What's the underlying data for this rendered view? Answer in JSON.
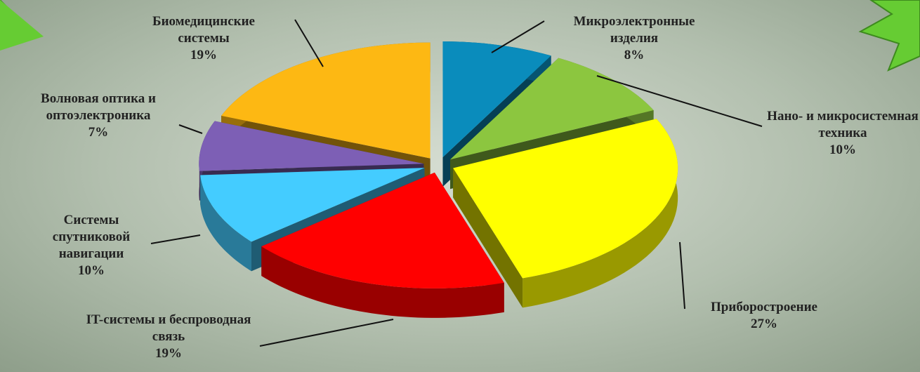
{
  "chart_data": {
    "type": "pie3d",
    "categories": [
      "Микроэлектронные изделия",
      "Нано- и микросистемная техника",
      "Приборостроение",
      "IT-системы и беспроводная связь",
      "Системы спутниковой навигации",
      "Волновая оптика и оптоэлектроника",
      "Биомедицинские системы"
    ],
    "values": [
      8,
      10,
      27,
      19,
      10,
      7,
      19
    ],
    "value_labels": [
      "8%",
      "10%",
      "27%",
      "19%",
      "10%",
      "7%",
      "19%"
    ],
    "colors": [
      "#0a8cbc",
      "#8cc63f",
      "#ffff00",
      "#ff0000",
      "#44ccff",
      "#7d5fb5",
      "#fdb813"
    ]
  }
}
